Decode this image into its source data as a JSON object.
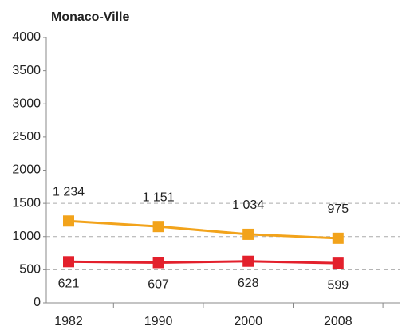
{
  "chart_data": {
    "type": "line",
    "title": "Monaco-Ville",
    "categories": [
      "1982",
      "1990",
      "2000",
      "2008"
    ],
    "series": [
      {
        "color": "#f2a31b",
        "values": [
          1234,
          1151,
          1034,
          975
        ],
        "value_labels": [
          "1 234",
          "1 151",
          "1 034",
          "975"
        ],
        "label_position": "above"
      },
      {
        "color": "#e3202c",
        "values": [
          621,
          607,
          628,
          599
        ],
        "label_position": "below"
      }
    ],
    "ylim": [
      0,
      4000
    ],
    "yticks": [
      0,
      500,
      1000,
      1500,
      2000,
      2500,
      3000,
      3500,
      4000
    ],
    "ygrid": [
      500,
      1000,
      1500
    ]
  }
}
